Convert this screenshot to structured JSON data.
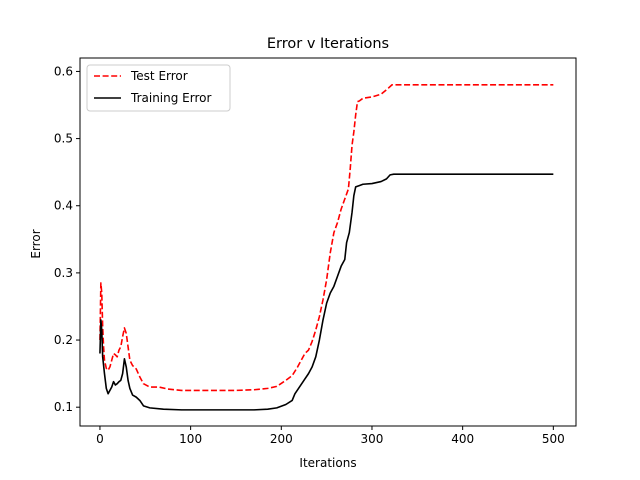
{
  "chart_data": {
    "type": "line",
    "title": "Error v Iterations",
    "xlabel": "Iterations",
    "ylabel": "Error",
    "xlim": [
      -22,
      525
    ],
    "ylim": [
      0.072,
      0.62
    ],
    "xticks": [
      0,
      100,
      200,
      300,
      400,
      500
    ],
    "yticks": [
      0.1,
      0.2,
      0.3,
      0.4,
      0.5,
      0.6
    ],
    "xtick_labels": [
      "0",
      "100",
      "200",
      "300",
      "400",
      "500"
    ],
    "ytick_labels": [
      "0.1",
      "0.2",
      "0.3",
      "0.4",
      "0.5",
      "0.6"
    ],
    "grid": false,
    "legend": "top-left",
    "series": [
      {
        "name": "Test Error",
        "color": "#ff0000",
        "style": "dashed",
        "points": [
          [
            0,
            0.2
          ],
          [
            1,
            0.285
          ],
          [
            2,
            0.27
          ],
          [
            3,
            0.22
          ],
          [
            4,
            0.19
          ],
          [
            5,
            0.17
          ],
          [
            7,
            0.158
          ],
          [
            9,
            0.155
          ],
          [
            11,
            0.16
          ],
          [
            13,
            0.17
          ],
          [
            15,
            0.18
          ],
          [
            17,
            0.178
          ],
          [
            19,
            0.175
          ],
          [
            21,
            0.185
          ],
          [
            23,
            0.19
          ],
          [
            25,
            0.205
          ],
          [
            27,
            0.218
          ],
          [
            29,
            0.21
          ],
          [
            31,
            0.19
          ],
          [
            33,
            0.17
          ],
          [
            36,
            0.162
          ],
          [
            40,
            0.157
          ],
          [
            44,
            0.145
          ],
          [
            48,
            0.135
          ],
          [
            55,
            0.13
          ],
          [
            65,
            0.13
          ],
          [
            75,
            0.127
          ],
          [
            90,
            0.125
          ],
          [
            120,
            0.125
          ],
          [
            150,
            0.125
          ],
          [
            170,
            0.126
          ],
          [
            185,
            0.128
          ],
          [
            195,
            0.131
          ],
          [
            205,
            0.14
          ],
          [
            212,
            0.147
          ],
          [
            218,
            0.16
          ],
          [
            222,
            0.17
          ],
          [
            226,
            0.18
          ],
          [
            230,
            0.185
          ],
          [
            234,
            0.198
          ],
          [
            238,
            0.215
          ],
          [
            242,
            0.235
          ],
          [
            246,
            0.26
          ],
          [
            250,
            0.29
          ],
          [
            254,
            0.33
          ],
          [
            258,
            0.36
          ],
          [
            262,
            0.375
          ],
          [
            266,
            0.395
          ],
          [
            270,
            0.41
          ],
          [
            274,
            0.425
          ],
          [
            276,
            0.455
          ],
          [
            278,
            0.49
          ],
          [
            280,
            0.51
          ],
          [
            282,
            0.535
          ],
          [
            284,
            0.555
          ],
          [
            286,
            0.556
          ],
          [
            290,
            0.56
          ],
          [
            300,
            0.562
          ],
          [
            310,
            0.566
          ],
          [
            318,
            0.575
          ],
          [
            322,
            0.58
          ],
          [
            340,
            0.58
          ],
          [
            400,
            0.58
          ],
          [
            500,
            0.58
          ]
        ]
      },
      {
        "name": "Training Error",
        "color": "#000000",
        "style": "solid",
        "points": [
          [
            0,
            0.18
          ],
          [
            1,
            0.23
          ],
          [
            2,
            0.215
          ],
          [
            3,
            0.175
          ],
          [
            5,
            0.15
          ],
          [
            7,
            0.128
          ],
          [
            9,
            0.12
          ],
          [
            11,
            0.125
          ],
          [
            13,
            0.13
          ],
          [
            15,
            0.138
          ],
          [
            17,
            0.133
          ],
          [
            19,
            0.135
          ],
          [
            21,
            0.138
          ],
          [
            23,
            0.14
          ],
          [
            25,
            0.15
          ],
          [
            27,
            0.172
          ],
          [
            29,
            0.16
          ],
          [
            31,
            0.14
          ],
          [
            33,
            0.128
          ],
          [
            36,
            0.118
          ],
          [
            40,
            0.115
          ],
          [
            44,
            0.11
          ],
          [
            48,
            0.102
          ],
          [
            55,
            0.099
          ],
          [
            70,
            0.097
          ],
          [
            90,
            0.096
          ],
          [
            120,
            0.096
          ],
          [
            150,
            0.096
          ],
          [
            170,
            0.096
          ],
          [
            185,
            0.097
          ],
          [
            195,
            0.099
          ],
          [
            205,
            0.104
          ],
          [
            212,
            0.11
          ],
          [
            215,
            0.12
          ],
          [
            220,
            0.13
          ],
          [
            225,
            0.14
          ],
          [
            230,
            0.15
          ],
          [
            234,
            0.16
          ],
          [
            238,
            0.175
          ],
          [
            242,
            0.2
          ],
          [
            246,
            0.23
          ],
          [
            250,
            0.255
          ],
          [
            254,
            0.27
          ],
          [
            258,
            0.28
          ],
          [
            262,
            0.295
          ],
          [
            266,
            0.31
          ],
          [
            270,
            0.32
          ],
          [
            272,
            0.345
          ],
          [
            275,
            0.36
          ],
          [
            278,
            0.39
          ],
          [
            280,
            0.415
          ],
          [
            282,
            0.428
          ],
          [
            286,
            0.43
          ],
          [
            290,
            0.432
          ],
          [
            300,
            0.433
          ],
          [
            310,
            0.436
          ],
          [
            316,
            0.44
          ],
          [
            320,
            0.446
          ],
          [
            324,
            0.447
          ],
          [
            340,
            0.447
          ],
          [
            400,
            0.447
          ],
          [
            500,
            0.447
          ]
        ]
      }
    ]
  }
}
